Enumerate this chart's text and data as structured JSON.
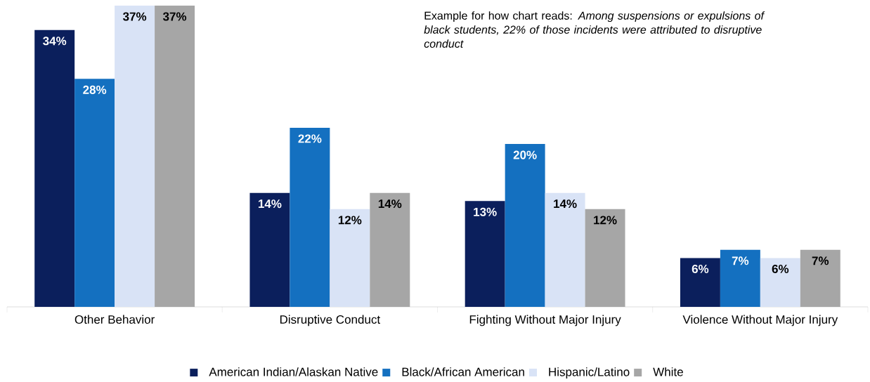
{
  "chart_data": {
    "type": "bar",
    "annotations": [
      "Example for how chart reads: *Among suspensions or expulsions of black students, 22% of those incidents were attributed to disruptive conduct*"
    ],
    "categories": [
      "Other Behavior",
      "Disruptive Conduct",
      "Fighting Without Major Injury",
      "Violence Without Major Injury"
    ],
    "series": [
      {
        "name": "American Indian/Alaskan Native",
        "color": "#0b1f5c",
        "values": [
          34,
          14,
          13,
          6
        ],
        "value_labels": [
          "34%",
          "14%",
          "13%",
          "6%"
        ]
      },
      {
        "name": "Black/African American",
        "color": "#1470c0",
        "values": [
          28,
          22,
          20,
          7
        ],
        "value_labels": [
          "28%",
          "22%",
          "20%",
          "7%"
        ]
      },
      {
        "name": "Hispanic/Latino",
        "color": "#d9e3f6",
        "values": [
          37,
          12,
          14,
          6
        ],
        "value_labels": [
          "37%",
          "12%",
          "14%",
          "6%"
        ]
      },
      {
        "name": "White",
        "color": "#a6a6a6",
        "values": [
          37,
          14,
          12,
          7
        ],
        "value_labels": [
          "37%",
          "14%",
          "12%",
          "7%"
        ]
      }
    ],
    "legend": "bottom"
  }
}
